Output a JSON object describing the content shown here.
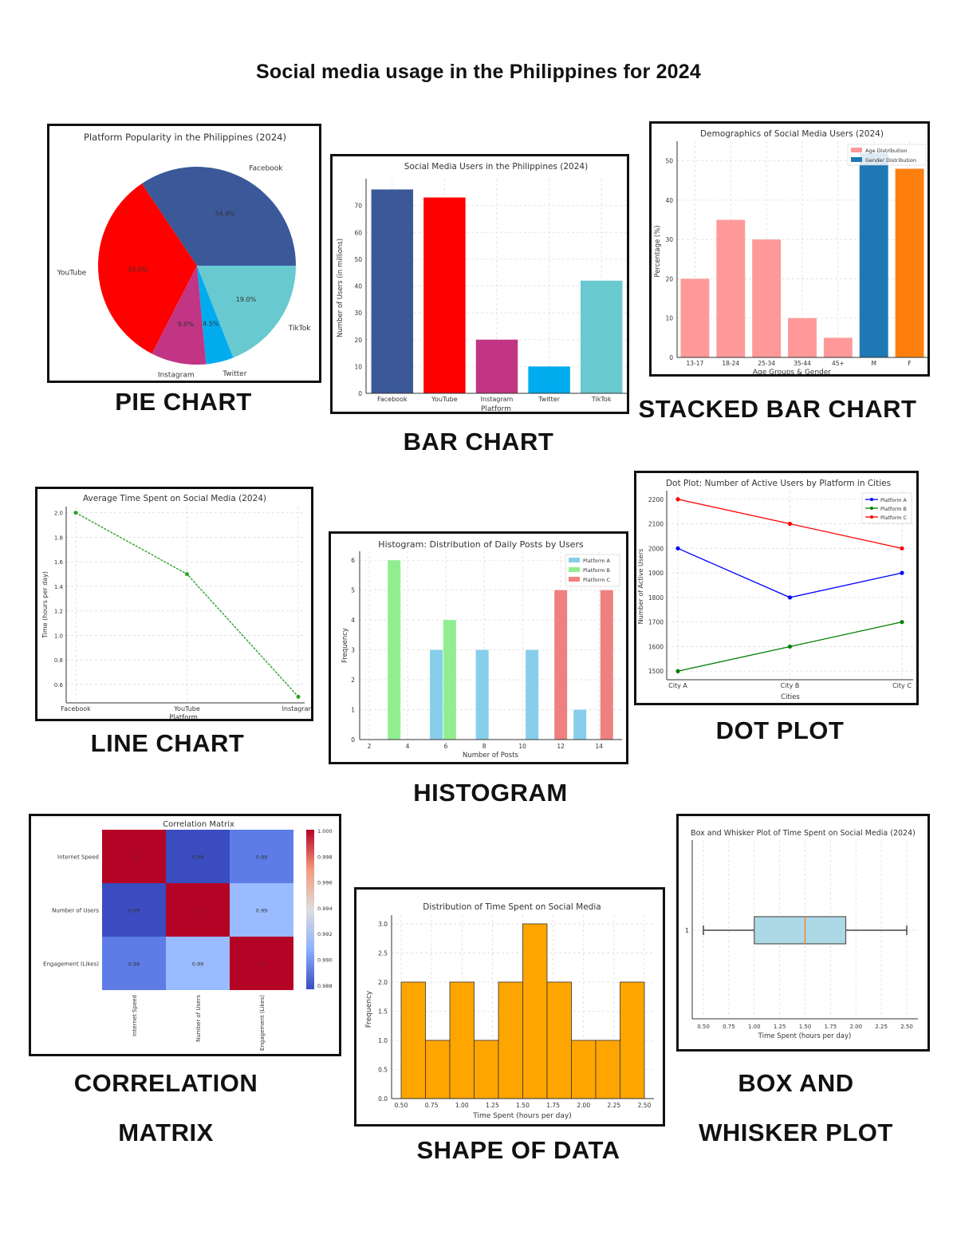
{
  "page": {
    "title": "Social media usage in the Philippines for 2024",
    "labels": {
      "pie": "PIE CHART",
      "bar": "BAR CHART",
      "stacked": "STACKED BAR CHART",
      "line": "LINE CHART",
      "histogram": "HISTOGRAM",
      "dot": "DOT PLOT",
      "corr1": "CORRELATION",
      "corr2": "MATRIX",
      "shape": "SHAPE OF DATA",
      "box1": "BOX AND",
      "box2": "WHISKER PLOT"
    }
  },
  "chart_data": [
    {
      "id": "pie",
      "type": "pie",
      "title": "Platform Popularity in the Philippines (2024)",
      "categories": [
        "Facebook",
        "YouTube",
        "Instagram",
        "Twitter",
        "TikTok"
      ],
      "values": [
        34.4,
        33.0,
        9.0,
        4.5,
        19.0
      ],
      "value_labels": [
        "34.4%",
        "33.0%",
        "9.0%",
        "4.5%",
        "19.0%"
      ],
      "colors": [
        "#3b5998",
        "#ff0000",
        "#c13584",
        "#00acee",
        "#69c9d0"
      ]
    },
    {
      "id": "bar",
      "type": "bar",
      "title": "Social Media Users in the Philippines (2024)",
      "categories": [
        "Facebook",
        "YouTube",
        "Instagram",
        "Twitter",
        "TikTok"
      ],
      "values": [
        76,
        73,
        20,
        10,
        42
      ],
      "colors": [
        "#3b5998",
        "#ff0000",
        "#c13584",
        "#00acee",
        "#69c9d0"
      ],
      "xlabel": "Platform",
      "ylabel": "Number of Users (in millions)",
      "ylim": [
        0,
        80
      ],
      "yticks": [
        0,
        10,
        20,
        30,
        40,
        50,
        60,
        70
      ],
      "grid": true
    },
    {
      "id": "stacked",
      "type": "bar",
      "title": "Demographics of Social Media Users (2024)",
      "categories": [
        "13-17",
        "18-24",
        "25-34",
        "35-44",
        "45+",
        "M",
        "F"
      ],
      "series": [
        {
          "name": "Age Distribution",
          "values": [
            20,
            35,
            30,
            10,
            5,
            null,
            null
          ],
          "color": "#ff9999"
        },
        {
          "name": "Gender Distribution",
          "values": [
            null,
            null,
            null,
            null,
            null,
            52,
            48
          ],
          "colors": [
            "#1f77b4",
            "#ff7f0e"
          ]
        }
      ],
      "xlabel": "Age Groups & Gender",
      "ylabel": "Percentage (%)",
      "ylim": [
        0,
        55
      ],
      "yticks": [
        0,
        10,
        20,
        30,
        40,
        50
      ],
      "legend_position": "upper right",
      "grid": true
    },
    {
      "id": "line",
      "type": "line",
      "title": "Average Time Spent on Social Media (2024)",
      "categories": [
        "Facebook",
        "YouTube",
        "Instagram"
      ],
      "values": [
        2.0,
        1.5,
        0.5
      ],
      "color": "#2ca02c",
      "xlabel": "Platform",
      "ylabel": "Time (hours per day)",
      "ylim": [
        0.45,
        2.05
      ],
      "yticks": [
        0.6,
        0.8,
        1.0,
        1.2,
        1.4,
        1.6,
        1.8,
        2.0
      ],
      "grid": true
    },
    {
      "id": "histogram",
      "type": "bar",
      "title": "Histogram: Distribution of Daily Posts by Users",
      "series": [
        {
          "name": "Platform A",
          "color": "#87ceeb",
          "bars": [
            {
              "x": 5.5,
              "h": 3
            },
            {
              "x": 7.9,
              "h": 3
            },
            {
              "x": 10.5,
              "h": 3
            },
            {
              "x": 13.0,
              "h": 1
            }
          ]
        },
        {
          "name": "Platform B",
          "color": "#90ee90",
          "bars": [
            {
              "x": 3.3,
              "h": 6
            },
            {
              "x": 6.2,
              "h": 4
            }
          ]
        },
        {
          "name": "Platform C",
          "color": "#f08080",
          "bars": [
            {
              "x": 12.0,
              "h": 5
            },
            {
              "x": 14.4,
              "h": 5
            }
          ]
        }
      ],
      "xlabel": "Number of Posts",
      "ylabel": "Frequency",
      "xlim": [
        1.5,
        15.2
      ],
      "ylim": [
        0,
        6.3
      ],
      "xticks": [
        2,
        4,
        6,
        8,
        10,
        12,
        14
      ],
      "yticks": [
        0,
        1,
        2,
        3,
        4,
        5,
        6
      ],
      "legend_position": "upper right",
      "grid": true
    },
    {
      "id": "dot",
      "type": "line",
      "title": "Dot Plot: Number of Active Users by Platform in Cities",
      "categories": [
        "City A",
        "City B",
        "City C"
      ],
      "series": [
        {
          "name": "Platform A",
          "values": [
            2000,
            1800,
            1900
          ],
          "color": "#0000ff"
        },
        {
          "name": "Platform B",
          "values": [
            1500,
            1600,
            1700
          ],
          "color": "#008000"
        },
        {
          "name": "Platform C",
          "values": [
            2200,
            2100,
            2000
          ],
          "color": "#ff0000"
        }
      ],
      "xlabel": "Cities",
      "ylabel": "Number of Active Users",
      "ylim": [
        1465,
        2235
      ],
      "yticks": [
        1500,
        1600,
        1700,
        1800,
        1900,
        2000,
        2100,
        2200
      ],
      "legend_position": "upper right",
      "grid": true
    },
    {
      "id": "corr",
      "type": "heatmap",
      "title": "Correlation Matrix",
      "labels": [
        "Internet Speed",
        "Number of Users",
        "Engagement (Likes)"
      ],
      "matrix": [
        [
          1,
          0.99,
          0.99
        ],
        [
          0.99,
          1,
          0.99
        ],
        [
          0.99,
          0.99,
          1
        ]
      ],
      "cell_colors": [
        [
          "#b40426",
          "#3b4cc0",
          "#5d7ce6"
        ],
        [
          "#3b4cc0",
          "#b40426",
          "#9abbff"
        ],
        [
          "#5d7ce6",
          "#9abbff",
          "#b40426"
        ]
      ],
      "cell_labels": [
        [
          "1",
          "0.99",
          "0.99"
        ],
        [
          "0.99",
          "1",
          "0.99"
        ],
        [
          "0.99",
          "0.99",
          "1"
        ]
      ],
      "colorbar_ticks": [
        "1.000",
        "0.998",
        "0.996",
        "0.994",
        "0.992",
        "0.990",
        "0.988"
      ],
      "colormap": "coolwarm"
    },
    {
      "id": "shape",
      "type": "bar",
      "title": "Distribution of Time Spent on Social Media",
      "bin_edges": [
        0.5,
        0.7,
        0.9,
        1.1,
        1.3,
        1.5,
        1.7,
        1.9,
        2.1,
        2.3,
        2.5
      ],
      "values": [
        2,
        1,
        2,
        1,
        2,
        3,
        2,
        1,
        1,
        2
      ],
      "color": "#ffa500",
      "xlabel": "Time Spent (hours per day)",
      "ylabel": "Frequency",
      "xticks": [
        "0.50",
        "0.75",
        "1.00",
        "1.25",
        "1.50",
        "1.75",
        "2.00",
        "2.25",
        "2.50"
      ],
      "yticks": [
        "0.0",
        "0.5",
        "1.0",
        "1.5",
        "2.0",
        "2.5",
        "3.0"
      ],
      "ylim": [
        0,
        3.15
      ],
      "grid": true
    },
    {
      "id": "box",
      "type": "box",
      "title": "Box and Whisker Plot of Time Spent on Social Media (2024)",
      "min": 0.5,
      "q1": 1.0,
      "median": 1.5,
      "q3": 1.9,
      "max": 2.5,
      "box_color": "#add8e6",
      "median_color": "#ff7f0e",
      "ytick": "1",
      "xlabel": "Time Spent (hours per day)",
      "xticks": [
        "0.50",
        "0.75",
        "1.00",
        "1.25",
        "1.50",
        "1.75",
        "2.00",
        "2.25",
        "2.50"
      ],
      "grid": true
    }
  ]
}
